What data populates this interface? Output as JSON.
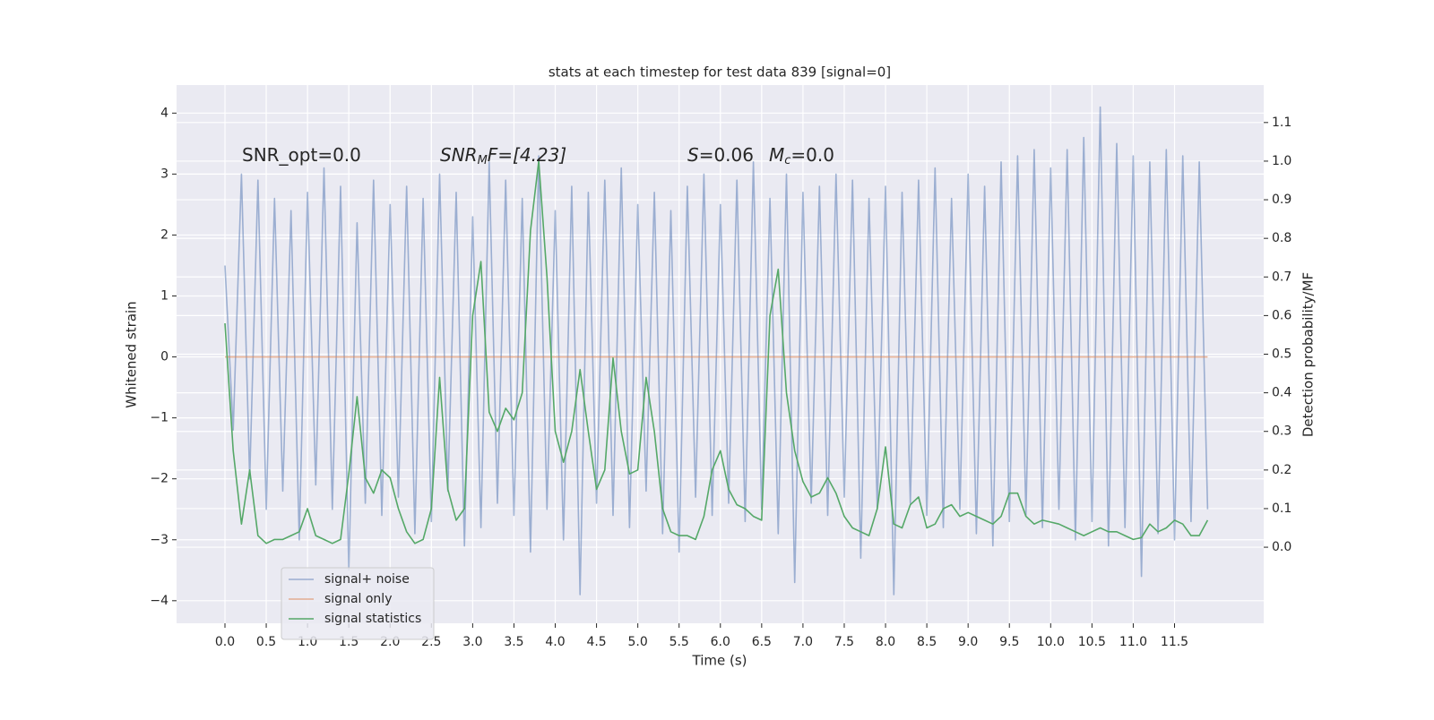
{
  "chart_data": {
    "type": "line",
    "title": "stats at each timestep for test data 839 [signal=0]",
    "xlabel": "Time (s)",
    "ylabel": "Whitened strain",
    "y2label": "Detection probability/MF",
    "annotations": [
      [
        "SNR_opt=0.0"
      ],
      [
        "SNR",
        "M",
        "F=[4.23]"
      ],
      [
        "S",
        "=0.06"
      ],
      [
        "M",
        "c",
        "=0.0"
      ]
    ],
    "legend": "lower left",
    "grid": true,
    "xlim": [
      -0.586,
      12.58
    ],
    "ylim": [
      -4.37,
      4.46
    ],
    "y2lim": [
      -0.197,
      1.197
    ],
    "xticks": [
      {
        "value": 0,
        "label": "0.0"
      },
      {
        "value": 0.5,
        "label": "0.5"
      },
      {
        "value": 1,
        "label": "1.0"
      },
      {
        "value": 1.5,
        "label": "1.5"
      },
      {
        "value": 2,
        "label": "2.0"
      },
      {
        "value": 2.5,
        "label": "2.5"
      },
      {
        "value": 3,
        "label": "3.0"
      },
      {
        "value": 3.5,
        "label": "3.5"
      },
      {
        "value": 4,
        "label": "4.0"
      },
      {
        "value": 4.5,
        "label": "4.5"
      },
      {
        "value": 5,
        "label": "5.0"
      },
      {
        "value": 5.5,
        "label": "5.5"
      },
      {
        "value": 6,
        "label": "6.0"
      },
      {
        "value": 6.5,
        "label": "6.5"
      },
      {
        "value": 7,
        "label": "7.0"
      },
      {
        "value": 7.5,
        "label": "7.5"
      },
      {
        "value": 8,
        "label": "8.0"
      },
      {
        "value": 8.5,
        "label": "8.5"
      },
      {
        "value": 9,
        "label": "9.0"
      },
      {
        "value": 9.5,
        "label": "9.5"
      },
      {
        "value": 10,
        "label": "10.0"
      },
      {
        "value": 10.5,
        "label": "10.5"
      },
      {
        "value": 11,
        "label": "11.0"
      },
      {
        "value": 11.5,
        "label": "11.5"
      }
    ],
    "yticks": [
      {
        "value": -4,
        "label": "−4"
      },
      {
        "value": -3,
        "label": "−3"
      },
      {
        "value": -2,
        "label": "−2"
      },
      {
        "value": -1,
        "label": "−1"
      },
      0,
      1,
      2,
      3,
      4
    ],
    "y2ticks": [
      {
        "value": 0,
        "label": "0.0"
      },
      {
        "value": 0.1,
        "label": "0.1"
      },
      {
        "value": 0.2,
        "label": "0.2"
      },
      {
        "value": 0.3,
        "label": "0.3"
      },
      {
        "value": 0.4,
        "label": "0.4"
      },
      {
        "value": 0.5,
        "label": "0.5"
      },
      {
        "value": 0.6,
        "label": "0.6"
      },
      {
        "value": 0.7,
        "label": "0.7"
      },
      {
        "value": 0.8,
        "label": "0.8"
      },
      {
        "value": 0.9,
        "label": "0.9"
      },
      {
        "value": 1.0,
        "label": "1.0"
      },
      {
        "value": 1.1,
        "label": "1.1"
      }
    ],
    "x": [
      0,
      0.1,
      0.2,
      0.3,
      0.4,
      0.5,
      0.6,
      0.7,
      0.8,
      0.9,
      1,
      1.1,
      1.2,
      1.3,
      1.4,
      1.5,
      1.6,
      1.7,
      1.8,
      1.9,
      2,
      2.1,
      2.2,
      2.3,
      2.4,
      2.5,
      2.6,
      2.7,
      2.8,
      2.9,
      3,
      3.1,
      3.2,
      3.3,
      3.4,
      3.5,
      3.6,
      3.7,
      3.8,
      3.9,
      4,
      4.1,
      4.2,
      4.3,
      4.4,
      4.5,
      4.6,
      4.7,
      4.8,
      4.9,
      5,
      5.1,
      5.2,
      5.3,
      5.4,
      5.5,
      5.6,
      5.7,
      5.8,
      5.9,
      6,
      6.1,
      6.2,
      6.3,
      6.4,
      6.5,
      6.6,
      6.7,
      6.8,
      6.9,
      7,
      7.1,
      7.2,
      7.3,
      7.4,
      7.5,
      7.6,
      7.7,
      7.8,
      7.9,
      8,
      8.1,
      8.2,
      8.3,
      8.4,
      8.5,
      8.6,
      8.7,
      8.8,
      8.9,
      9,
      9.1,
      9.2,
      9.3,
      9.4,
      9.5,
      9.6,
      9.7,
      9.8,
      9.9,
      10,
      10.1,
      10.2,
      10.3,
      10.4,
      10.5,
      10.6,
      10.7,
      10.8,
      10.9,
      11,
      11.1,
      11.2,
      11.3,
      11.4,
      11.5,
      11.6,
      11.7,
      11.8,
      11.9
    ],
    "series": [
      {
        "name": "signal+ noise",
        "color": "#4c72b0",
        "values": [
          1.5,
          -1.2,
          3.0,
          -2.0,
          2.9,
          -2.5,
          2.6,
          -2.2,
          2.4,
          -3.0,
          2.7,
          -2.1,
          3.1,
          -2.5,
          2.8,
          -3.5,
          2.2,
          -2.4,
          2.9,
          -2.6,
          2.5,
          -2.3,
          2.8,
          -2.9,
          2.6,
          -2.7,
          3.0,
          -2.2,
          2.7,
          -3.1,
          2.3,
          -2.8,
          3.2,
          -2.4,
          2.9,
          -2.6,
          2.6,
          -3.2,
          3.3,
          -2.5,
          2.4,
          -3.0,
          2.8,
          -3.9,
          2.7,
          -2.4,
          2.9,
          -2.6,
          3.1,
          -2.8,
          2.5,
          -2.2,
          2.7,
          -2.9,
          2.4,
          -3.2,
          2.8,
          -2.3,
          3.0,
          -2.6,
          2.5,
          -2.4,
          2.9,
          -2.7,
          3.2,
          -2.5,
          2.6,
          -2.9,
          3.0,
          -3.7,
          2.7,
          -2.4,
          2.8,
          -2.6,
          3.0,
          -2.3,
          2.9,
          -3.3,
          2.6,
          -2.5,
          2.8,
          -3.9,
          2.7,
          -2.4,
          2.9,
          -2.6,
          3.1,
          -2.8,
          2.6,
          -2.5,
          3.0,
          -2.9,
          2.8,
          -3.1,
          3.2,
          -2.7,
          3.3,
          -2.6,
          3.4,
          -2.8,
          3.1,
          -2.5,
          3.4,
          -3.0,
          3.6,
          -2.7,
          4.1,
          -3.1,
          3.5,
          -2.8,
          3.3,
          -3.6,
          3.2,
          -2.9,
          3.4,
          -3.0,
          3.3,
          -2.7,
          3.2,
          -2.5
        ]
      },
      {
        "name": "signal only",
        "color": "#dd8452",
        "values": [
          0,
          0,
          0,
          0,
          0,
          0,
          0,
          0,
          0,
          0,
          0,
          0,
          0,
          0,
          0,
          0,
          0,
          0,
          0,
          0,
          0,
          0,
          0,
          0,
          0,
          0,
          0,
          0,
          0,
          0,
          0,
          0,
          0,
          0,
          0,
          0,
          0,
          0,
          0,
          0,
          0,
          0,
          0,
          0,
          0,
          0,
          0,
          0,
          0,
          0,
          0,
          0,
          0,
          0,
          0,
          0,
          0,
          0,
          0,
          0,
          0,
          0,
          0,
          0,
          0,
          0,
          0,
          0,
          0,
          0,
          0,
          0,
          0,
          0,
          0,
          0,
          0,
          0,
          0,
          0,
          0,
          0,
          0,
          0,
          0,
          0,
          0,
          0,
          0,
          0,
          0,
          0,
          0,
          0,
          0,
          0,
          0,
          0,
          0,
          0,
          0,
          0,
          0,
          0,
          0,
          0,
          0,
          0,
          0,
          0,
          0,
          0,
          0,
          0,
          0,
          0,
          0,
          0,
          0,
          0
        ]
      },
      {
        "name": "signal statistics",
        "color": "#55a868",
        "axis": "y2",
        "values": [
          0.58,
          0.25,
          0.06,
          0.2,
          0.03,
          0.01,
          0.02,
          0.02,
          0.03,
          0.04,
          0.1,
          0.03,
          0.02,
          0.01,
          0.02,
          0.19,
          0.39,
          0.18,
          0.14,
          0.2,
          0.18,
          0.1,
          0.04,
          0.01,
          0.02,
          0.1,
          0.44,
          0.15,
          0.07,
          0.1,
          0.6,
          0.74,
          0.35,
          0.3,
          0.36,
          0.33,
          0.4,
          0.82,
          1.0,
          0.7,
          0.3,
          0.22,
          0.3,
          0.46,
          0.3,
          0.15,
          0.2,
          0.49,
          0.3,
          0.19,
          0.2,
          0.44,
          0.3,
          0.1,
          0.04,
          0.03,
          0.03,
          0.02,
          0.08,
          0.2,
          0.25,
          0.15,
          0.11,
          0.1,
          0.08,
          0.07,
          0.6,
          0.72,
          0.4,
          0.25,
          0.17,
          0.13,
          0.14,
          0.18,
          0.14,
          0.08,
          0.05,
          0.04,
          0.03,
          0.1,
          0.26,
          0.06,
          0.05,
          0.11,
          0.13,
          0.05,
          0.06,
          0.1,
          0.11,
          0.08,
          0.09,
          0.08,
          0.07,
          0.06,
          0.08,
          0.14,
          0.14,
          0.08,
          0.06,
          0.07,
          0.065,
          0.06,
          0.05,
          0.04,
          0.03,
          0.04,
          0.05,
          0.04,
          0.04,
          0.03,
          0.02,
          0.025,
          0.06,
          0.04,
          0.05,
          0.07,
          0.06,
          0.03,
          0.03,
          0.07
        ]
      }
    ]
  }
}
